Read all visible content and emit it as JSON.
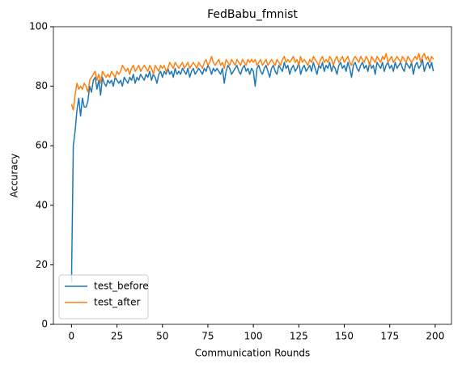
{
  "chart_data": {
    "type": "line",
    "title": "FedBabu_fmnist",
    "xlabel": "Communication Rounds",
    "ylabel": "Accuracy",
    "x": [
      0,
      1,
      2,
      3,
      4,
      5,
      6,
      7,
      8,
      9,
      10,
      11,
      12,
      13,
      14,
      15,
      16,
      17,
      18,
      19,
      20,
      21,
      22,
      23,
      24,
      25,
      26,
      27,
      28,
      29,
      30,
      31,
      32,
      33,
      34,
      35,
      36,
      37,
      38,
      39,
      40,
      41,
      42,
      43,
      44,
      45,
      46,
      47,
      48,
      49,
      50,
      51,
      52,
      53,
      54,
      55,
      56,
      57,
      58,
      59,
      60,
      61,
      62,
      63,
      64,
      65,
      66,
      67,
      68,
      69,
      70,
      71,
      72,
      73,
      74,
      75,
      76,
      77,
      78,
      79,
      80,
      81,
      82,
      83,
      84,
      85,
      86,
      87,
      88,
      89,
      90,
      91,
      92,
      93,
      94,
      95,
      96,
      97,
      98,
      99,
      100,
      101,
      102,
      103,
      104,
      105,
      106,
      107,
      108,
      109,
      110,
      111,
      112,
      113,
      114,
      115,
      116,
      117,
      118,
      119,
      120,
      121,
      122,
      123,
      124,
      125,
      126,
      127,
      128,
      129,
      130,
      131,
      132,
      133,
      134,
      135,
      136,
      137,
      138,
      139,
      140,
      141,
      142,
      143,
      144,
      145,
      146,
      147,
      148,
      149,
      150,
      151,
      152,
      153,
      154,
      155,
      156,
      157,
      158,
      159,
      160,
      161,
      162,
      163,
      164,
      165,
      166,
      167,
      168,
      169,
      170,
      171,
      172,
      173,
      174,
      175,
      176,
      177,
      178,
      179,
      180,
      181,
      182,
      183,
      184,
      185,
      186,
      187,
      188,
      189,
      190,
      191,
      192,
      193,
      194,
      195,
      196,
      197,
      198,
      199
    ],
    "series": [
      {
        "name": "test_before",
        "color": "#1f77b4",
        "values": [
          14,
          60,
          65,
          72,
          76,
          70,
          76,
          73,
          73,
          75,
          80,
          78,
          82,
          83,
          79,
          82,
          77,
          83,
          81,
          80,
          82,
          81,
          82,
          80,
          83,
          82,
          81,
          82,
          80,
          83,
          82,
          81,
          83,
          82,
          84,
          81,
          83,
          82,
          84,
          83,
          82,
          84,
          83,
          85,
          82,
          84,
          83,
          81,
          84,
          85,
          83,
          85,
          84,
          86,
          84,
          85,
          83,
          86,
          84,
          85,
          84,
          86,
          85,
          84,
          86,
          83,
          85,
          86,
          84,
          85,
          86,
          85,
          84,
          86,
          85,
          87,
          86,
          84,
          86,
          85,
          86,
          85,
          84,
          86,
          81,
          85,
          87,
          86,
          84,
          85,
          86,
          87,
          85,
          84,
          86,
          87,
          85,
          86,
          84,
          86,
          85,
          80,
          86,
          87,
          85,
          84,
          86,
          87,
          85,
          83,
          86,
          87,
          85,
          84,
          87,
          86,
          85,
          88,
          86,
          87,
          84,
          86,
          87,
          85,
          86,
          88,
          84,
          86,
          87,
          85,
          86,
          87,
          85,
          88,
          86,
          84,
          87,
          86,
          88,
          85,
          87,
          86,
          88,
          85,
          87,
          86,
          84,
          87,
          88,
          86,
          87,
          85,
          88,
          86,
          83,
          87,
          88,
          86,
          85,
          87,
          88,
          86,
          87,
          85,
          88,
          86,
          87,
          84,
          88,
          87,
          86,
          88,
          85,
          87,
          88,
          86,
          87,
          85,
          88,
          86,
          87,
          88,
          86,
          85,
          88,
          87,
          86,
          88,
          84,
          87,
          88,
          86,
          87,
          89,
          85,
          87,
          88,
          86,
          88,
          85
        ]
      },
      {
        "name": "test_after",
        "color": "#ff7f0e",
        "values": [
          74,
          72,
          77,
          81,
          79,
          80,
          79,
          81,
          80,
          78,
          82,
          83,
          84,
          85,
          82,
          84,
          81,
          85,
          84,
          83,
          84,
          83,
          85,
          84,
          83,
          85,
          84,
          85,
          87,
          86,
          85,
          86,
          84,
          86,
          87,
          85,
          86,
          87,
          85,
          86,
          87,
          86,
          85,
          87,
          86,
          84,
          87,
          86,
          85,
          87,
          86,
          87,
          85,
          86,
          88,
          87,
          86,
          88,
          87,
          86,
          87,
          88,
          86,
          87,
          88,
          86,
          87,
          88,
          87,
          86,
          88,
          87,
          86,
          88,
          89,
          87,
          88,
          90,
          88,
          87,
          88,
          89,
          87,
          88,
          86,
          89,
          88,
          87,
          89,
          88,
          87,
          89,
          88,
          87,
          89,
          88,
          87,
          89,
          88,
          89,
          88,
          89,
          87,
          88,
          89,
          87,
          88,
          89,
          87,
          88,
          89,
          88,
          87,
          89,
          88,
          87,
          89,
          90,
          88,
          89,
          88,
          89,
          90,
          88,
          89,
          87,
          90,
          88,
          89,
          88,
          87,
          89,
          88,
          90,
          89,
          88,
          87,
          89,
          90,
          88,
          89,
          88,
          90,
          89,
          87,
          89,
          90,
          88,
          89,
          90,
          88,
          89,
          90,
          88,
          87,
          89,
          90,
          89,
          88,
          90,
          89,
          88,
          90,
          89,
          87,
          90,
          89,
          88,
          90,
          89,
          88,
          90,
          89,
          91,
          88,
          89,
          90,
          88,
          89,
          90,
          89,
          88,
          90,
          89,
          88,
          90,
          89,
          88,
          89,
          90,
          89,
          91,
          88,
          90,
          91,
          89,
          90,
          88,
          90,
          89
        ]
      }
    ],
    "xlim": [
      -9.95,
      208.95
    ],
    "xticks": [
      0,
      25,
      50,
      75,
      100,
      125,
      150,
      175,
      200
    ],
    "ylim": [
      0,
      100
    ],
    "yticks": [
      0,
      20,
      40,
      60,
      80,
      100
    ],
    "legend": "lower left"
  }
}
